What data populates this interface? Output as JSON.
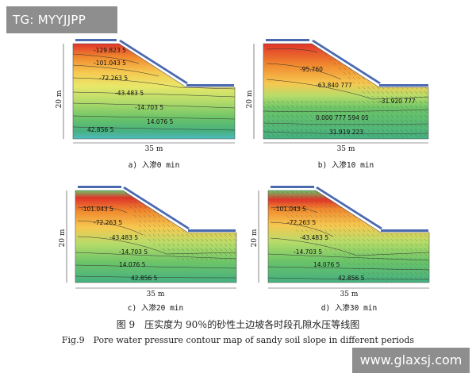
{
  "overlay": {
    "tag": "TG: MYYJJPP",
    "watermark": "www.glaxsj.com"
  },
  "dims": {
    "height": "20 m",
    "width": "35 m"
  },
  "panels": [
    {
      "caption": "a) 入渗0 min",
      "labels": [
        "-129.823 5",
        "-101.043 5",
        "-72.263 5",
        "-43.483 5",
        "-14.703 5",
        "14.076 5",
        "42.856 5"
      ]
    },
    {
      "caption": "b) 入渗10 min",
      "labels": [
        "-95.760",
        "-63.840 777",
        "-31.920 777",
        "0.000 777 594 05",
        "31.919 223"
      ]
    },
    {
      "caption": "c) 入渗20 min",
      "labels": [
        "-101.043 5",
        "-72.263 5",
        "-43.483 5",
        "-14.703 5",
        "14.076 5",
        "42.856 5"
      ]
    },
    {
      "caption": "d) 入渗30 min",
      "labels": [
        "-101.043 5",
        "-72.263 5",
        "-43.483 5",
        "-14.703 5",
        "14.076 5",
        "42.856 5"
      ]
    }
  ],
  "figure": {
    "caption_cn": "图 9　压实度为 90％的砂性土边坡各时段孔隙水压等线图",
    "caption_en": "Fig.9　Pore water pressure contour map of sandy soil slope in different periods"
  },
  "colors": {
    "band1": "#e0342a",
    "band2": "#f0882e",
    "band3": "#f6c850",
    "band4": "#e8e86a",
    "band5": "#b6dc6a",
    "band6": "#6cc468",
    "band7": "#46b080",
    "band8": "#52bcc0"
  }
}
